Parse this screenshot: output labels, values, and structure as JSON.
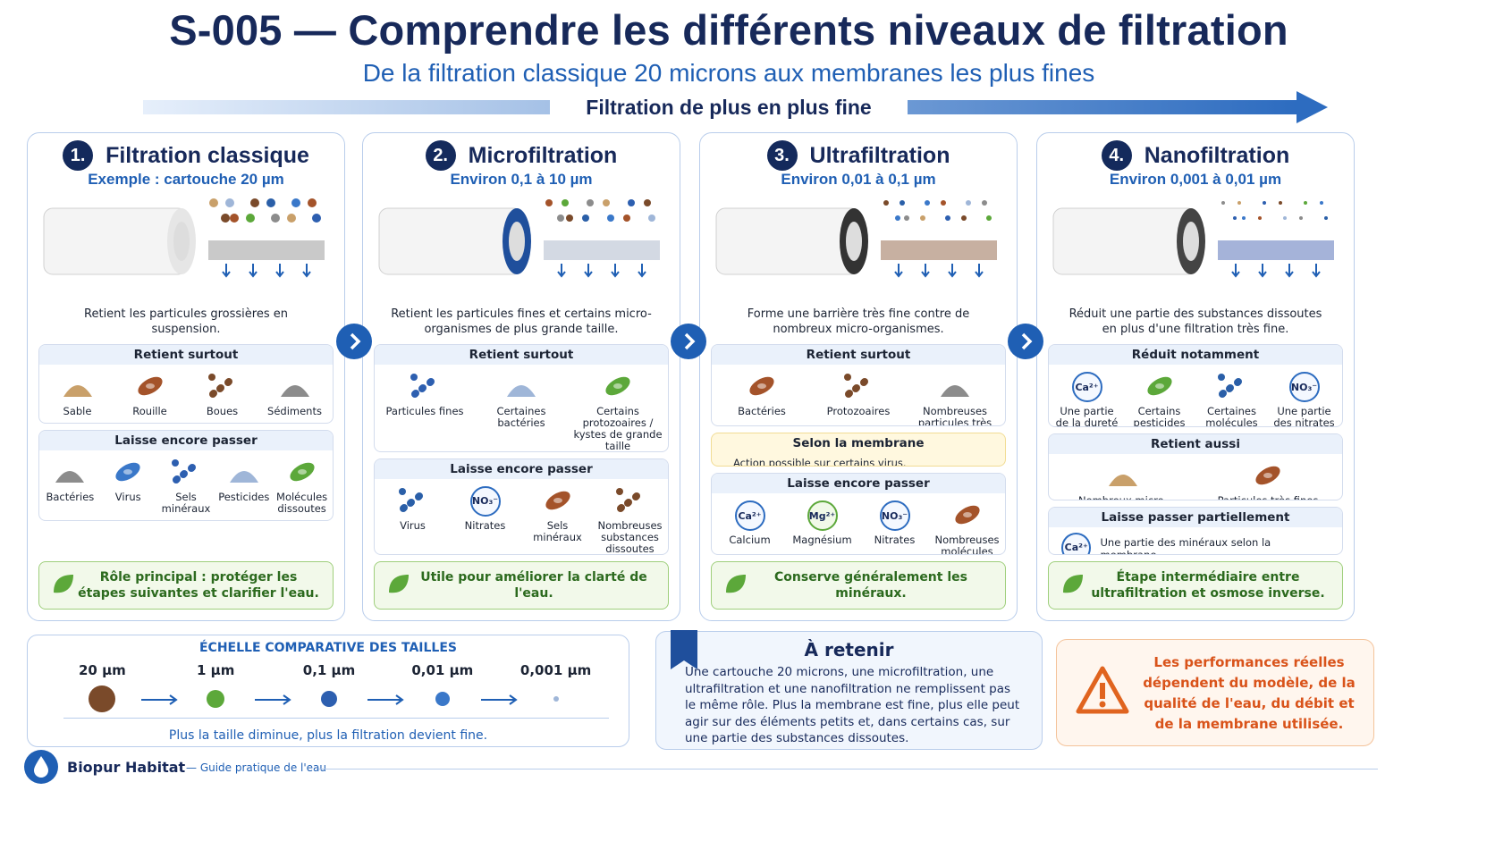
{
  "header": {
    "title": "S-005 — Comprendre les différents niveaux de filtration",
    "subtitle": "De la filtration classique 20 microns aux membranes les plus fines",
    "arrow_label": "Filtration de plus en plus fine"
  },
  "stages": [
    {
      "number": "1.",
      "title": "Filtration classique",
      "range": "Exemple : cartouche 20 µm",
      "description": "Retient les particules grossières en suspension.",
      "sections": [
        {
          "title": "Retient surtout",
          "items": [
            {
              "label": "Sable"
            },
            {
              "label": "Rouille"
            },
            {
              "label": "Boues"
            },
            {
              "label": "Sédiments"
            }
          ]
        },
        {
          "title": "Laisse encore passer",
          "items": [
            {
              "label": "Bactéries"
            },
            {
              "label": "Virus"
            },
            {
              "label": "Sels minéraux"
            },
            {
              "label": "Pesticides"
            },
            {
              "label": "Molécules dissoutes"
            }
          ]
        }
      ],
      "note": "Rôle principal : protéger les étapes suivantes et clarifier l'eau."
    },
    {
      "number": "2.",
      "title": "Microfiltration",
      "range": "Environ 0,1 à 10 µm",
      "description": "Retient les particules fines et certains micro-organismes de plus grande taille.",
      "sections": [
        {
          "title": "Retient surtout",
          "items": [
            {
              "label": "Particules fines"
            },
            {
              "label": "Certaines bactéries"
            },
            {
              "label": "Certains protozoaires / kystes de grande taille"
            }
          ]
        },
        {
          "title": "Laisse encore passer",
          "items": [
            {
              "label": "Virus"
            },
            {
              "icon": "NO₃⁻",
              "label": "Nitrates"
            },
            {
              "label": "Sels minéraux"
            },
            {
              "label": "Nombreuses substances dissoutes"
            }
          ]
        }
      ],
      "note": "Utile pour améliorer la clarté de l'eau."
    },
    {
      "number": "3.",
      "title": "Ultrafiltration",
      "range": "Environ 0,01 à 0,1 µm",
      "description": "Forme une barrière très fine contre de nombreux micro-organismes.",
      "sections": [
        {
          "title": "Retient surtout",
          "items": [
            {
              "label": "Bactéries"
            },
            {
              "label": "Protozoaires"
            },
            {
              "label": "Nombreuses particules très fines"
            }
          ]
        },
        {
          "title": "Selon la membrane",
          "text": "Action possible sur certains virus."
        },
        {
          "title": "Laisse encore passer",
          "items": [
            {
              "icon": "Ca²⁺",
              "label": "Calcium"
            },
            {
              "icon": "Mg²⁺",
              "label": "Magnésium"
            },
            {
              "icon": "NO₃⁻",
              "label": "Nitrates"
            },
            {
              "label": "Nombreuses molécules dissoutes"
            }
          ]
        }
      ],
      "note": "Conserve généralement les minéraux."
    },
    {
      "number": "4.",
      "title": "Nanofiltration",
      "range": "Environ 0,001 à 0,01 µm",
      "description": "Réduit une partie des substances dissoutes en plus d'une filtration très fine.",
      "sections": [
        {
          "title": "Réduit notamment",
          "items": [
            {
              "icon": "Ca²⁺",
              "label": "Une partie de la dureté"
            },
            {
              "label": "Certains pesticides"
            },
            {
              "label": "Certaines molécules organiques"
            },
            {
              "icon": "NO₃⁻",
              "label": "Une partie des nitrates selon la membrane"
            }
          ]
        },
        {
          "title": "Retient aussi",
          "items": [
            {
              "label": "Nombreux micro-organismes"
            },
            {
              "label": "Particules très fines"
            }
          ]
        },
        {
          "title": "Laisse passer partiellement",
          "icon": "Ca²⁺",
          "text": "Une partie des minéraux selon la membrane."
        }
      ],
      "note": "Étape intermédiaire entre ultrafiltration et osmose inverse."
    }
  ],
  "scale": {
    "title": "ÉCHELLE COMPARATIVE DES TAILLES",
    "sizes": [
      "20 µm",
      "1 µm",
      "0,1 µm",
      "0,01 µm",
      "0,001 µm"
    ],
    "caption": "Plus la taille diminue, plus la filtration devient fine."
  },
  "retain": {
    "title": "À retenir",
    "text": "Une cartouche 20 microns, une microfiltration, une ultrafiltration et une nanofiltration ne remplissent pas le même rôle. Plus la membrane est fine, plus elle peut agir sur des éléments petits et, dans certains cas, sur une partie des substances dissoutes."
  },
  "warning": {
    "text": "Les performances réelles dépendent du modèle, de la qualité de l'eau, du débit et de la membrane utilisée."
  },
  "footer": {
    "brand": "Biopur Habitat",
    "tagline": "— Guide pratique de l'eau"
  }
}
